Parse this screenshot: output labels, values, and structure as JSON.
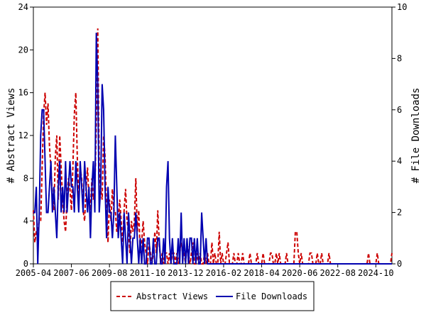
{
  "chart_data": {
    "type": "line",
    "ylabel": "# Abstract Views",
    "y2label": "# File Downloads",
    "x": [
      "2005-04",
      "2005-05",
      "2005-06",
      "2005-07",
      "2005-08",
      "2005-09",
      "2005-10",
      "2005-11",
      "2005-12",
      "2006-01",
      "2006-02",
      "2006-03",
      "2006-04",
      "2006-05",
      "2006-06",
      "2006-07",
      "2006-08",
      "2006-09",
      "2006-10",
      "2006-11",
      "2006-12",
      "2007-01",
      "2007-02",
      "2007-03",
      "2007-04",
      "2007-05",
      "2007-06",
      "2007-07",
      "2007-08",
      "2007-09",
      "2007-10",
      "2007-11",
      "2007-12",
      "2008-01",
      "2008-02",
      "2008-03",
      "2008-04",
      "2008-05",
      "2008-06",
      "2008-07",
      "2008-08",
      "2008-09",
      "2008-10",
      "2008-11",
      "2008-12",
      "2009-01",
      "2009-02",
      "2009-03",
      "2009-04",
      "2009-05",
      "2009-06",
      "2009-07",
      "2009-08",
      "2009-09",
      "2009-10",
      "2009-11",
      "2009-12",
      "2010-01",
      "2010-02",
      "2010-03",
      "2010-04",
      "2010-05",
      "2010-06",
      "2010-07",
      "2010-08",
      "2010-09",
      "2010-10",
      "2010-11",
      "2010-12",
      "2011-01",
      "2011-02",
      "2011-03",
      "2011-04",
      "2011-05",
      "2011-06",
      "2011-07",
      "2011-08",
      "2011-09",
      "2011-10",
      "2011-11",
      "2011-12",
      "2012-01",
      "2012-02",
      "2012-03",
      "2012-04",
      "2012-05",
      "2012-06",
      "2012-07",
      "2012-08",
      "2012-09",
      "2012-10",
      "2012-11",
      "2012-12",
      "2013-01",
      "2013-02",
      "2013-03",
      "2013-04",
      "2013-05",
      "2013-06",
      "2013-07",
      "2013-08",
      "2013-09",
      "2013-10",
      "2013-11",
      "2013-12",
      "2014-01",
      "2014-02",
      "2014-03",
      "2014-04",
      "2014-05",
      "2014-06",
      "2014-07",
      "2014-08",
      "2014-09",
      "2014-10",
      "2014-11",
      "2014-12",
      "2015-01",
      "2015-02",
      "2015-03",
      "2015-04",
      "2015-05",
      "2015-06",
      "2015-07",
      "2015-08",
      "2015-09",
      "2015-10",
      "2015-11",
      "2015-12",
      "2016-01",
      "2016-02",
      "2016-03",
      "2016-04",
      "2016-05",
      "2016-06",
      "2016-07",
      "2016-08",
      "2016-09",
      "2016-10",
      "2016-11",
      "2016-12",
      "2017-01",
      "2017-02",
      "2017-03",
      "2017-04",
      "2017-05",
      "2017-06",
      "2017-07",
      "2017-08",
      "2017-09",
      "2017-10",
      "2017-11",
      "2017-12",
      "2018-01",
      "2018-02",
      "2018-03",
      "2018-04",
      "2018-05",
      "2018-06",
      "2018-07",
      "2018-08",
      "2018-09",
      "2018-10",
      "2018-11",
      "2018-12",
      "2019-01",
      "2019-02",
      "2019-03",
      "2019-04",
      "2019-05",
      "2019-06",
      "2019-07",
      "2019-08",
      "2019-09",
      "2019-10",
      "2019-11",
      "2019-12",
      "2020-01",
      "2020-02",
      "2020-03",
      "2020-04",
      "2020-05",
      "2020-06",
      "2020-07",
      "2020-08",
      "2020-09",
      "2020-10",
      "2020-11",
      "2020-12",
      "2021-01",
      "2021-02",
      "2021-03",
      "2021-04",
      "2021-05",
      "2021-06",
      "2021-07",
      "2021-08",
      "2021-09",
      "2021-10",
      "2021-11",
      "2021-12",
      "2022-01",
      "2022-02",
      "2022-03",
      "2022-04",
      "2022-05",
      "2022-06",
      "2022-07",
      "2022-08",
      "2022-09",
      "2022-10",
      "2022-11",
      "2022-12",
      "2023-01",
      "2023-02",
      "2023-03",
      "2023-04",
      "2023-05",
      "2023-06",
      "2023-07",
      "2023-08",
      "2023-09",
      "2023-10",
      "2023-11",
      "2023-12",
      "2024-01",
      "2024-02",
      "2024-03",
      "2024-04",
      "2024-05",
      "2024-06",
      "2024-07",
      "2024-08",
      "2024-09",
      "2024-10",
      "2024-11",
      "2024-12",
      "2025-01",
      "2025-02",
      "2025-03",
      "2025-04",
      "2025-05",
      "2025-06",
      "2025-07",
      "2025-08",
      "2025-09"
    ],
    "xticks": [
      "2005-04",
      "2007-06",
      "2009-08",
      "2011-10",
      "2013-12",
      "2016-02",
      "2018-04",
      "2020-06",
      "2022-08",
      "2024-10"
    ],
    "ylim": [
      0,
      24
    ],
    "yticks": [
      0,
      4,
      8,
      12,
      16,
      20,
      24
    ],
    "y2lim": [
      0,
      10
    ],
    "y2ticks": [
      0,
      2,
      4,
      6,
      8,
      10
    ],
    "series": [
      {
        "name": "Abstract Views",
        "color": "#cc0000",
        "dash": true,
        "values": [
          5,
          2,
          3,
          3,
          4,
          4,
          9,
          14,
          16,
          13,
          15,
          11,
          9,
          6,
          5,
          10,
          12,
          6,
          12,
          9,
          6,
          4,
          3,
          6,
          8,
          7,
          5,
          9,
          14,
          16,
          10,
          6,
          9,
          8,
          5,
          4,
          7,
          9,
          6,
          5,
          8,
          6,
          7,
          13,
          22,
          9,
          7,
          6,
          12,
          10,
          5,
          2,
          6,
          4,
          7,
          5,
          5,
          3,
          4,
          6,
          4,
          2,
          5,
          7,
          4,
          3,
          1,
          4,
          3,
          4,
          8,
          3,
          5,
          1,
          2,
          4,
          2,
          1,
          0,
          2,
          1,
          0,
          1,
          3,
          1,
          5,
          2,
          0,
          1,
          0,
          1,
          1,
          0,
          1,
          0,
          1,
          1,
          0,
          1,
          0,
          1,
          2,
          1,
          1,
          0,
          2,
          1,
          0,
          1,
          2,
          0,
          0,
          1,
          0,
          1,
          0,
          0,
          1,
          0,
          1,
          0,
          0,
          2,
          0,
          1,
          0,
          0,
          3,
          0,
          1,
          0,
          0,
          1,
          2,
          0,
          0,
          0,
          1,
          0,
          0,
          1,
          0,
          0,
          1,
          0,
          0,
          0,
          0,
          1,
          0,
          0,
          0,
          0,
          1,
          0,
          0,
          0,
          1,
          0,
          0,
          0,
          0,
          1,
          1,
          0,
          0,
          1,
          0,
          1,
          0,
          0,
          0,
          0,
          1,
          0,
          0,
          0,
          0,
          0,
          3,
          3,
          1,
          0,
          1,
          0,
          0,
          0,
          0,
          0,
          1,
          1,
          0,
          0,
          0,
          1,
          0,
          0,
          1,
          0,
          0,
          0,
          0,
          1,
          0,
          0,
          0,
          0,
          0,
          0,
          0,
          0,
          0,
          0,
          0,
          0,
          0,
          0,
          0,
          0,
          0,
          0,
          0,
          0,
          0,
          0,
          0,
          0,
          0,
          0,
          1,
          0,
          0,
          0,
          0,
          0,
          1,
          0,
          0,
          0,
          0,
          0,
          0,
          0,
          0,
          0,
          1
        ]
      },
      {
        "name": "File Downloads",
        "color": "#0000b0",
        "axis": "y2",
        "values": [
          2,
          2,
          3,
          0,
          2,
          5,
          6,
          6,
          4,
          2,
          2,
          3,
          4,
          2,
          3,
          2,
          1,
          3,
          4,
          2,
          3,
          2,
          4,
          2,
          3,
          4,
          3,
          3,
          2,
          4,
          3,
          2,
          4,
          3,
          2,
          4,
          3,
          2,
          3,
          1,
          3,
          4,
          2,
          9,
          7,
          2,
          3,
          7,
          6,
          3,
          1,
          3,
          2,
          2,
          1,
          2,
          5,
          3,
          1,
          2,
          1,
          0,
          2,
          1,
          0,
          2,
          1,
          0,
          1,
          1,
          2,
          1,
          0,
          1,
          0,
          1,
          0,
          0,
          1,
          1,
          0,
          0,
          1,
          0,
          0,
          1,
          1,
          0,
          0,
          1,
          0,
          3,
          4,
          1,
          0,
          1,
          0,
          0,
          0,
          1,
          0,
          2,
          0,
          1,
          0,
          1,
          0,
          1,
          1,
          0,
          1,
          0,
          1,
          0,
          0,
          2,
          1,
          0,
          1,
          0,
          0,
          0,
          0,
          0,
          0,
          0,
          0,
          0,
          0,
          0,
          0,
          0,
          0,
          0,
          0,
          0,
          0,
          0,
          0,
          0,
          0,
          0,
          0,
          0,
          0,
          0,
          0,
          0,
          0,
          0,
          0,
          0,
          0,
          0,
          0,
          0,
          0,
          0,
          0,
          0,
          0,
          0,
          0,
          0,
          0,
          0,
          0,
          0,
          0,
          0,
          0,
          0,
          0,
          0,
          0,
          0,
          0,
          0,
          0,
          0,
          0,
          0,
          0,
          0,
          0,
          0,
          0,
          0,
          0,
          0,
          0,
          0,
          0,
          0,
          0,
          0,
          0,
          0,
          0,
          0,
          0,
          0,
          0,
          0,
          0,
          0,
          0,
          0,
          0,
          0,
          0,
          0,
          0,
          0,
          0,
          0,
          0,
          0,
          0,
          0,
          0,
          0,
          0,
          0,
          0,
          0,
          0,
          0,
          0,
          0,
          0,
          0,
          0,
          0,
          0,
          0,
          0,
          0,
          0,
          0,
          0,
          0,
          0,
          0,
          0,
          0
        ]
      }
    ]
  }
}
